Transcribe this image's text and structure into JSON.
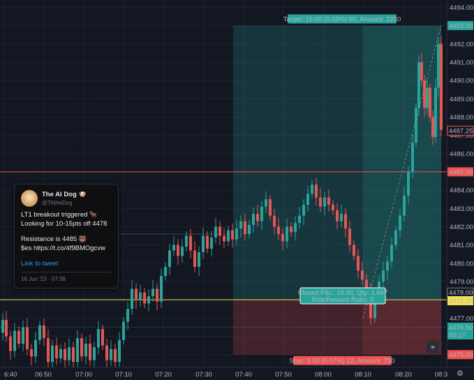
{
  "chart_data": {
    "type": "candlestick",
    "y_axis": {
      "range": [
        4474.3,
        4494.4
      ],
      "ticks": [
        "4494.00",
        "4492.00",
        "4491.00",
        "4490.00",
        "4489.00",
        "4488.00",
        "4487.00",
        "4486.00",
        "4484.00",
        "4483.00",
        "4482.00",
        "4481.00",
        "4480.00",
        "4479.00",
        "4477.00"
      ]
    },
    "x_axis": {
      "ticks": [
        "6:40",
        "06:50",
        "07:00",
        "07:10",
        "07:20",
        "07:30",
        "07:40",
        "07:50",
        "08:00",
        "08:10",
        "08:20",
        "08:3"
      ]
    },
    "price_markers": [
      {
        "label": "4493.00",
        "value": 4493.0,
        "color": "#26a69a"
      },
      {
        "label": "4487.25",
        "value": 4487.25,
        "color": "#ef5350",
        "style": "outline"
      },
      {
        "label": "4485.00",
        "value": 4485.0,
        "color": "#ef5350"
      },
      {
        "label": "4478.00",
        "value": 4478.4,
        "color": "#787b86",
        "style": "outline"
      },
      {
        "label": "4478.00",
        "value": 4477.95,
        "color": "#f5e250",
        "text_color": "#131722"
      },
      {
        "label": "4476.50",
        "sub": "00:17",
        "value": 4476.5,
        "color": "#26a69a"
      },
      {
        "label": "4475.00",
        "value": 4475.0,
        "color": "#ef5350"
      }
    ],
    "lines": {
      "resistance": 4485.0,
      "entry": 4478.0,
      "current": 4476.5,
      "level_4481_6": 4481.6
    },
    "position": {
      "target_label": "Target: 15.00 (0.33%) 60, Amount: 2250",
      "stop_label": "Stop: 3.00 (0.07%) 12, Amount: 750",
      "closed_label_1": "Closed P&L: 15.00, Qty: 1.667",
      "closed_label_2": "Risk/Reward Ratio: 5",
      "entry": 4478.0,
      "target": 4493.0,
      "stop": 4475.0
    },
    "price_path": [
      [
        0,
        4476.2
      ],
      [
        4,
        4476.9
      ],
      [
        10,
        4476.0
      ],
      [
        16,
        4475.2
      ],
      [
        22,
        4476.3
      ],
      [
        28,
        4475.6
      ],
      [
        34,
        4476.5
      ],
      [
        40,
        4475.3
      ],
      [
        46,
        4474.9
      ],
      [
        52,
        4475.8
      ],
      [
        58,
        4476.6
      ],
      [
        64,
        4475.9
      ],
      [
        70,
        4474.6
      ],
      [
        76,
        4475.5
      ],
      [
        82,
        4474.8
      ],
      [
        88,
        4475.3
      ],
      [
        94,
        4474.7
      ],
      [
        100,
        4475.4
      ],
      [
        106,
        4474.6
      ],
      [
        112,
        4475.9
      ],
      [
        118,
        4474.9
      ],
      [
        124,
        4475.6
      ],
      [
        130,
        4474.7
      ],
      [
        136,
        4475.4
      ],
      [
        142,
        4476.4
      ],
      [
        148,
        4475.5
      ],
      [
        154,
        4474.7
      ],
      [
        160,
        4475.3
      ],
      [
        166,
        4474.6
      ],
      [
        172,
        4475.8
      ],
      [
        178,
        4476.8
      ],
      [
        184,
        4477.5
      ],
      [
        190,
        4478.6
      ],
      [
        196,
        4478.0
      ],
      [
        202,
        4478.4
      ],
      [
        208,
        4477.8
      ],
      [
        214,
        4478.2
      ],
      [
        220,
        4478.6
      ],
      [
        226,
        4477.9
      ],
      [
        232,
        4479.3
      ],
      [
        238,
        4479.8
      ],
      [
        244,
        4480.7
      ],
      [
        250,
        4481.0
      ],
      [
        256,
        4480.4
      ],
      [
        262,
        4480.9
      ],
      [
        268,
        4481.5
      ],
      [
        274,
        4480.7
      ],
      [
        280,
        4479.8
      ],
      [
        286,
        4480.6
      ],
      [
        292,
        4481.5
      ],
      [
        298,
        4480.8
      ],
      [
        304,
        4481.4
      ],
      [
        310,
        4482.0
      ],
      [
        316,
        4481.5
      ],
      [
        322,
        4481.2
      ],
      [
        328,
        4481.8
      ],
      [
        334,
        4481.3
      ],
      [
        340,
        4481.9
      ],
      [
        346,
        4482.3
      ],
      [
        352,
        4481.6
      ],
      [
        358,
        4482.1
      ],
      [
        364,
        4482.7
      ],
      [
        370,
        4482.3
      ],
      [
        376,
        4483.1
      ],
      [
        382,
        4483.5
      ],
      [
        388,
        4482.6
      ],
      [
        394,
        4482.0
      ],
      [
        400,
        4481.6
      ],
      [
        406,
        4481.2
      ],
      [
        412,
        4482.0
      ],
      [
        418,
        4481.7
      ],
      [
        424,
        4482.2
      ],
      [
        430,
        4482.6
      ],
      [
        436,
        4483.2
      ],
      [
        442,
        4483.8
      ],
      [
        448,
        4484.3
      ],
      [
        454,
        4483.6
      ],
      [
        460,
        4483.1
      ],
      [
        466,
        4483.6
      ],
      [
        472,
        4483.2
      ],
      [
        478,
        4482.9
      ],
      [
        484,
        4482.3
      ],
      [
        490,
        4482.7
      ],
      [
        496,
        4481.9
      ],
      [
        502,
        4481.0
      ],
      [
        508,
        4480.4
      ],
      [
        514,
        4479.6
      ],
      [
        520,
        4479.1
      ],
      [
        526,
        4478.5
      ],
      [
        532,
        4477.0
      ],
      [
        538,
        4478.4
      ],
      [
        544,
        4479.0
      ],
      [
        550,
        4479.6
      ],
      [
        556,
        4480.1
      ],
      [
        562,
        4481.0
      ],
      [
        568,
        4481.8
      ],
      [
        574,
        4482.6
      ],
      [
        580,
        4483.7
      ],
      [
        586,
        4485.0
      ],
      [
        592,
        4486.6
      ],
      [
        596,
        4488.5
      ],
      [
        600,
        4491.0
      ],
      [
        604,
        4490.0
      ],
      [
        608,
        4488.5
      ],
      [
        612,
        4489.6
      ],
      [
        616,
        4488.0
      ],
      [
        620,
        4486.9
      ],
      [
        624,
        4489.6
      ],
      [
        628,
        4492.0
      ],
      [
        632,
        4487.3
      ]
    ]
  },
  "tweet": {
    "name": "The AI Dog",
    "handle": "@TAtheDog",
    "line1": "LT1 breakout triggered",
    "line1_emoji": "🐂",
    "line2": "Looking for 10-15pts off 4478",
    "line3": "Resistance is 4485",
    "line3_emoji": "🐻",
    "line4": "$es https://t.co/4f9BMOgcvw",
    "link": "Link to tweet",
    "date": "16 Jun '23 · 07:38",
    "name_emoji": "🐶"
  },
  "controls": {
    "fast_forward": "»",
    "settings": "⚙"
  }
}
